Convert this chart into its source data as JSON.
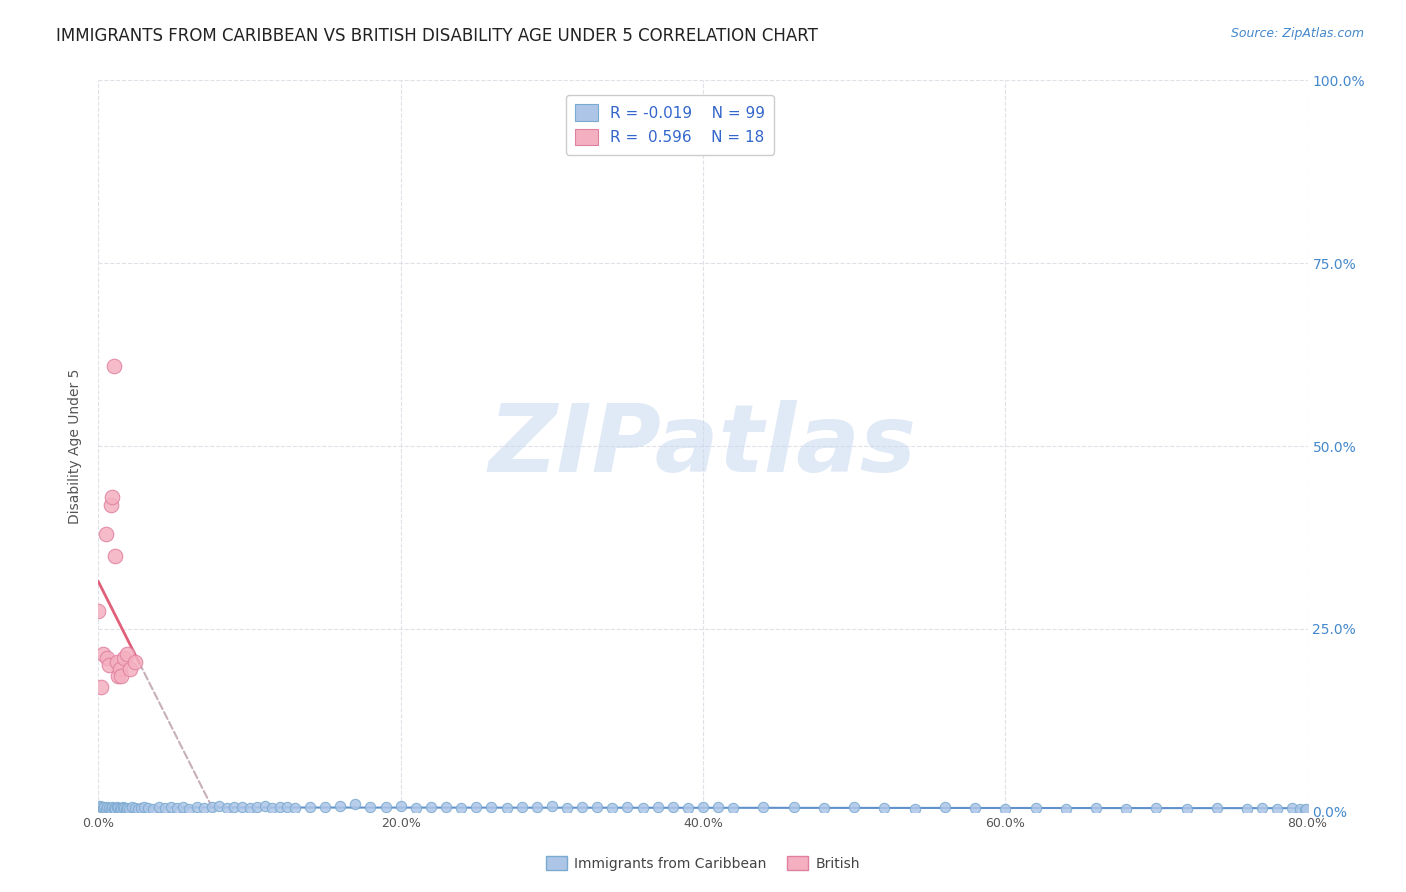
{
  "title": "IMMIGRANTS FROM CARIBBEAN VS BRITISH DISABILITY AGE UNDER 5 CORRELATION CHART",
  "source": "Source: ZipAtlas.com",
  "xlabel": "",
  "ylabel": "Disability Age Under 5",
  "xlim": [
    0.0,
    0.8
  ],
  "ylim": [
    0.0,
    1.0
  ],
  "xticks": [
    0.0,
    0.2,
    0.4,
    0.6,
    0.8
  ],
  "xtick_labels": [
    "0.0%",
    "20.0%",
    "40.0%",
    "60.0%",
    "80.0%"
  ],
  "yticks": [
    0.0,
    0.25,
    0.5,
    0.75,
    1.0
  ],
  "ytick_labels": [
    "0.0%",
    "25.0%",
    "50.0%",
    "75.0%",
    "100.0%"
  ],
  "blue_color": "#adc6e8",
  "blue_edge_color": "#7aaad0",
  "pink_color": "#f4b0c0",
  "pink_edge_color": "#e080a0",
  "trend_pink_color": "#e0607a",
  "trend_gray_color": "#c8b0b8",
  "blue_line_color": "#6090cc",
  "legend_r1_label": "R = -0.019",
  "legend_n1_label": "N = 99",
  "legend_r2_label": "R =  0.596",
  "legend_n2_label": "N = 18",
  "legend_text_color": "#3366cc",
  "watermark": "ZIPatlas",
  "watermark_zip_color": "#c8d8ee",
  "watermark_atlas_color": "#aabbd8",
  "title_fontsize": 12,
  "axis_label_fontsize": 10,
  "tick_fontsize": 9,
  "source_fontsize": 9,
  "blue_x": [
    0.001,
    0.002,
    0.003,
    0.004,
    0.005,
    0.006,
    0.007,
    0.008,
    0.009,
    0.01,
    0.011,
    0.012,
    0.013,
    0.014,
    0.015,
    0.016,
    0.017,
    0.018,
    0.019,
    0.02,
    0.022,
    0.024,
    0.026,
    0.028,
    0.03,
    0.033,
    0.036,
    0.04,
    0.044,
    0.048,
    0.052,
    0.056,
    0.06,
    0.065,
    0.07,
    0.075,
    0.08,
    0.085,
    0.09,
    0.095,
    0.1,
    0.105,
    0.11,
    0.115,
    0.12,
    0.125,
    0.13,
    0.14,
    0.15,
    0.16,
    0.17,
    0.18,
    0.19,
    0.2,
    0.21,
    0.22,
    0.23,
    0.24,
    0.25,
    0.26,
    0.27,
    0.28,
    0.29,
    0.3,
    0.31,
    0.32,
    0.33,
    0.34,
    0.35,
    0.36,
    0.37,
    0.38,
    0.39,
    0.4,
    0.41,
    0.42,
    0.44,
    0.46,
    0.48,
    0.5,
    0.52,
    0.54,
    0.56,
    0.58,
    0.6,
    0.62,
    0.64,
    0.66,
    0.68,
    0.7,
    0.72,
    0.74,
    0.76,
    0.77,
    0.78,
    0.79,
    0.795,
    0.798,
    0.799
  ],
  "blue_y": [
    0.008,
    0.006,
    0.005,
    0.007,
    0.004,
    0.006,
    0.005,
    0.004,
    0.006,
    0.005,
    0.004,
    0.006,
    0.005,
    0.004,
    0.005,
    0.006,
    0.005,
    0.004,
    0.005,
    0.004,
    0.006,
    0.005,
    0.004,
    0.005,
    0.006,
    0.005,
    0.004,
    0.006,
    0.005,
    0.007,
    0.005,
    0.006,
    0.004,
    0.007,
    0.005,
    0.006,
    0.008,
    0.005,
    0.006,
    0.007,
    0.005,
    0.006,
    0.008,
    0.005,
    0.007,
    0.006,
    0.005,
    0.007,
    0.006,
    0.008,
    0.01,
    0.007,
    0.006,
    0.008,
    0.005,
    0.007,
    0.006,
    0.005,
    0.007,
    0.006,
    0.005,
    0.007,
    0.006,
    0.008,
    0.005,
    0.006,
    0.007,
    0.005,
    0.006,
    0.005,
    0.007,
    0.006,
    0.005,
    0.007,
    0.006,
    0.005,
    0.006,
    0.007,
    0.005,
    0.006,
    0.005,
    0.004,
    0.006,
    0.005,
    0.004,
    0.005,
    0.004,
    0.005,
    0.004,
    0.005,
    0.004,
    0.005,
    0.004,
    0.005,
    0.004,
    0.005,
    0.004,
    0.003,
    0.004
  ],
  "pink_x": [
    0.0,
    0.002,
    0.003,
    0.005,
    0.006,
    0.007,
    0.008,
    0.009,
    0.01,
    0.011,
    0.012,
    0.013,
    0.014,
    0.015,
    0.017,
    0.019,
    0.021,
    0.024
  ],
  "pink_y": [
    0.275,
    0.17,
    0.215,
    0.38,
    0.21,
    0.2,
    0.42,
    0.43,
    0.61,
    0.35,
    0.205,
    0.185,
    0.195,
    0.185,
    0.21,
    0.215,
    0.195,
    0.205
  ],
  "pink_trend_x_start": 0.0,
  "pink_trend_x_solid_end": 0.027,
  "pink_trend_x_dash_end": 0.32
}
